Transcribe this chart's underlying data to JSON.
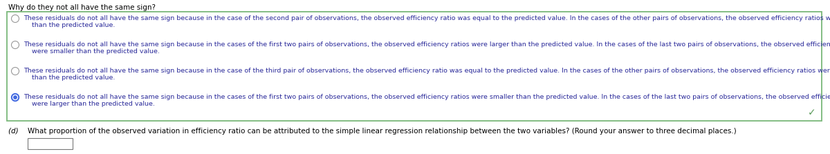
{
  "title": "Why do they not all have the same sign?",
  "title_fontsize": 7.5,
  "title_color": "#000000",
  "bg_color": "#ffffff",
  "box_border_color": "#7ab87a",
  "options": [
    {
      "selected": false,
      "line1": "These residuals do not all have the same sign because in the case of the second pair of observations, the observed efficiency ratio was equal to the predicted value. In the cases of the other pairs of observations, the observed efficiency ratios were larger",
      "line2": "than the predicted value."
    },
    {
      "selected": false,
      "line1": "These residuals do not all have the same sign because in the cases of the first two pairs of observations, the observed efficiency ratios were larger than the predicted value. In the cases of the last two pairs of observations, the observed efficiency ratios",
      "line2": "were smaller than the predicted value."
    },
    {
      "selected": false,
      "line1": "These residuals do not all have the same sign because in the case of the third pair of observations, the observed efficiency ratio was equal to the predicted value. In the cases of the other pairs of observations, the observed efficiency ratios were smaller",
      "line2": "than the predicted value."
    },
    {
      "selected": true,
      "line1": "These residuals do not all have the same sign because in the cases of the first two pairs of observations, the observed efficiency ratios were smaller than the predicted value. In the cases of the last two pairs of observations, the observed efficiency ratios",
      "line2": "were larger than the predicted value."
    }
  ],
  "checkmark_color": "#5a9a5a",
  "part_d_label": "(d)   ",
  "part_d_text": "What proportion of the observed variation in efficiency ratio can be attributed to the simple linear regression relationship between the two variables? (Round your answer to three decimal places.)",
  "part_d_fontsize": 7.5,
  "radio_sel_color": "#4169e1",
  "radio_sel_inner": "#ffffff",
  "radio_unsel_edge": "#999999",
  "text_color": "#2a2a9a",
  "option_fontsize": 6.8,
  "bold_words": [
    "all",
    "all",
    "all",
    "all"
  ]
}
